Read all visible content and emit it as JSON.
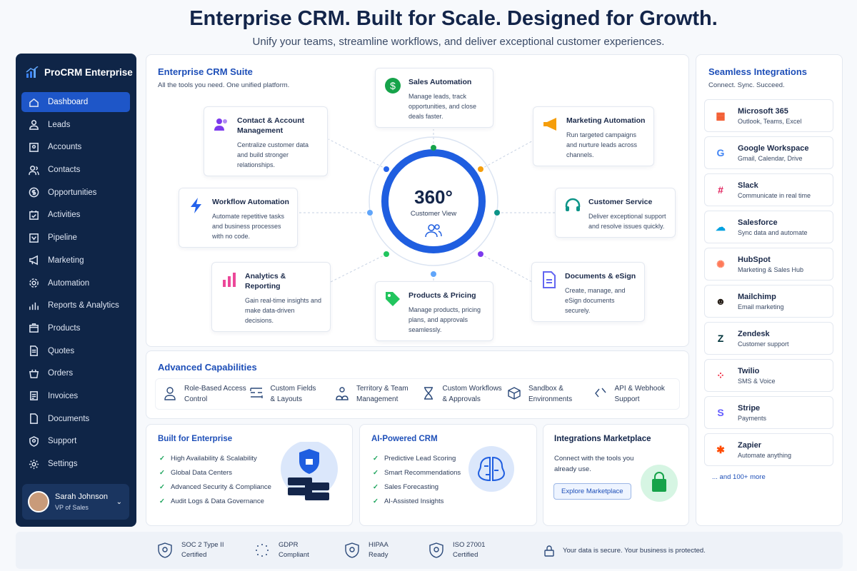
{
  "header": {
    "title": "Enterprise CRM. Built for Scale. Designed for Growth.",
    "subtitle": "Unify your teams, streamline workflows, and deliver exceptional customer experiences."
  },
  "sidebar": {
    "brand": "ProCRM Enterprise",
    "items": [
      {
        "label": "Dashboard",
        "icon": "home-icon",
        "active": true
      },
      {
        "label": "Leads",
        "icon": "user-icon"
      },
      {
        "label": "Accounts",
        "icon": "building-icon"
      },
      {
        "label": "Contacts",
        "icon": "users-icon"
      },
      {
        "label": "Opportunities",
        "icon": "dollar-icon"
      },
      {
        "label": "Activities",
        "icon": "calendar-check-icon"
      },
      {
        "label": "Pipeline",
        "icon": "pipeline-icon"
      },
      {
        "label": "Marketing",
        "icon": "megaphone-icon"
      },
      {
        "label": "Automation",
        "icon": "gear-icon"
      },
      {
        "label": "Reports & Analytics",
        "icon": "bar-chart-icon"
      },
      {
        "label": "Products",
        "icon": "box-icon"
      },
      {
        "label": "Quotes",
        "icon": "document-icon"
      },
      {
        "label": "Orders",
        "icon": "basket-icon"
      },
      {
        "label": "Invoices",
        "icon": "invoice-icon"
      },
      {
        "label": "Documents",
        "icon": "file-icon"
      },
      {
        "label": "Support",
        "icon": "support-icon"
      },
      {
        "label": "Settings",
        "icon": "settings-icon"
      }
    ],
    "user": {
      "name": "Sarah Johnson",
      "role": "VP of Sales"
    }
  },
  "suite": {
    "title": "Enterprise CRM Suite",
    "subtitle": "All the tools you need. One unified platform.",
    "hub_value": "360°",
    "hub_label": "Customer View",
    "cards": [
      {
        "title": "Sales Automation",
        "desc": "Manage leads, track opportunities, and close deals faster.",
        "icon": "dollar-icon",
        "color": "#16a34a"
      },
      {
        "title": "Contact & Account Management",
        "desc": "Centralize customer data and build stronger relationships.",
        "icon": "users-icon",
        "color": "#7c3aed"
      },
      {
        "title": "Marketing Automation",
        "desc": "Run targeted campaigns and nurture leads across channels.",
        "icon": "megaphone-icon",
        "color": "#f59e0b"
      },
      {
        "title": "Workflow Automation",
        "desc": "Automate repetitive tasks and business processes with no code.",
        "icon": "lightning-icon",
        "color": "#2563eb"
      },
      {
        "title": "Customer Service",
        "desc": "Deliver exceptional support and resolve issues quickly.",
        "icon": "headset-icon",
        "color": "#0d9488"
      },
      {
        "title": "Analytics & Reporting",
        "desc": "Gain real-time insights and make data-driven decisions.",
        "icon": "bar-chart-icon",
        "color": "#ec4899"
      },
      {
        "title": "Products & Pricing",
        "desc": "Manage products, pricing plans, and approvals seamlessly.",
        "icon": "tag-icon",
        "color": "#22c55e"
      },
      {
        "title": "Documents & eSign",
        "desc": "Create, manage, and eSign documents securely.",
        "icon": "document-icon",
        "color": "#6366f1"
      }
    ]
  },
  "advanced": {
    "title": "Advanced Capabilities",
    "items": [
      {
        "l1": "Role-Based Access",
        "l2": "Control"
      },
      {
        "l1": "Custom Fields",
        "l2": "& Layouts"
      },
      {
        "l1": "Territory & Team",
        "l2": "Management"
      },
      {
        "l1": "Custom Workflows",
        "l2": "& Approvals"
      },
      {
        "l1": "Sandbox &",
        "l2": "Environments"
      },
      {
        "l1": "API & Webhook",
        "l2": "Support"
      }
    ]
  },
  "enterprise": {
    "title": "Built for Enterprise",
    "items": [
      "High Availability & Scalability",
      "Global Data Centers",
      "Advanced Security & Compliance",
      "Audit Logs & Data Governance"
    ]
  },
  "ai": {
    "title": "AI-Powered CRM",
    "items": [
      "Predictive Lead Scoring",
      "Smart Recommendations",
      "Sales Forecasting",
      "AI-Assisted Insights"
    ]
  },
  "marketplace": {
    "title": "Integrations Marketplace",
    "desc": "Connect with the tools you already use.",
    "button": "Explore Marketplace"
  },
  "integrations": {
    "title": "Seamless Integrations",
    "subtitle": "Connect. Sync. Succeed.",
    "more": "... and 100+ more",
    "items": [
      {
        "name": "Microsoft 365",
        "desc": "Outlook, Teams, Excel",
        "glyph": "▦",
        "color": "#f25022"
      },
      {
        "name": "Google Workspace",
        "desc": "Gmail, Calendar, Drive",
        "glyph": "G",
        "color": "#4285f4"
      },
      {
        "name": "Slack",
        "desc": "Communicate in real time",
        "glyph": "#",
        "color": "#e01e5a"
      },
      {
        "name": "Salesforce",
        "desc": "Sync data and automate",
        "glyph": "☁",
        "color": "#00a1e0"
      },
      {
        "name": "HubSpot",
        "desc": "Marketing & Sales Hub",
        "glyph": "✺",
        "color": "#ff7a59"
      },
      {
        "name": "Mailchimp",
        "desc": "Email marketing",
        "glyph": "☻",
        "color": "#241c15"
      },
      {
        "name": "Zendesk",
        "desc": "Customer support",
        "glyph": "Z",
        "color": "#03363d"
      },
      {
        "name": "Twilio",
        "desc": "SMS & Voice",
        "glyph": "⁘",
        "color": "#f22f46"
      },
      {
        "name": "Stripe",
        "desc": "Payments",
        "glyph": "S",
        "color": "#635bff"
      },
      {
        "name": "Zapier",
        "desc": "Automate anything",
        "glyph": "✱",
        "color": "#ff4a00"
      }
    ]
  },
  "footer": {
    "badges": [
      {
        "l1": "SOC 2 Type II",
        "l2": "Certified"
      },
      {
        "l1": "GDPR",
        "l2": "Compliant"
      },
      {
        "l1": "HIPAA",
        "l2": "Ready"
      },
      {
        "l1": "ISO 27001",
        "l2": "Certified"
      }
    ],
    "secure": "Your data is secure. Your business is protected."
  }
}
